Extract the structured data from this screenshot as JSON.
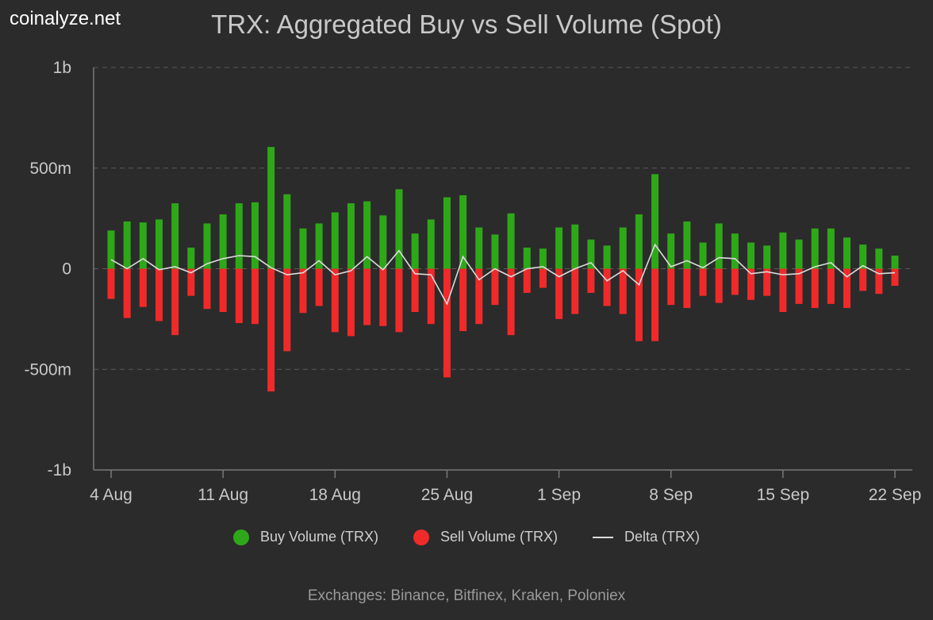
{
  "brand": "coinalyze.net",
  "title": "TRX: Aggregated Buy vs Sell Volume (Spot)",
  "footer": "Exchanges: Binance, Bitfinex, Kraken, Poloniex",
  "legend": {
    "buy": "Buy Volume (TRX)",
    "sell": "Sell Volume (TRX)",
    "delta": "Delta (TRX)"
  },
  "colors": {
    "buy": "#2ea818",
    "sell": "#f02a2a",
    "delta": "#dcdcdc",
    "grid": "#5a5a5a",
    "background": "#2b2b2b"
  },
  "chart_data": {
    "type": "bar",
    "title": "TRX: Aggregated Buy vs Sell Volume (Spot)",
    "ylim": [
      -1000000000,
      1000000000
    ],
    "y_ticks": [
      {
        "value": 1000000000,
        "label": "1b"
      },
      {
        "value": 500000000,
        "label": "500m"
      },
      {
        "value": 0,
        "label": "0"
      },
      {
        "value": -500000000,
        "label": "-500m"
      },
      {
        "value": -1000000000,
        "label": "-1b"
      }
    ],
    "x_ticks": [
      {
        "index": 0,
        "label": "4 Aug"
      },
      {
        "index": 7,
        "label": "11 Aug"
      },
      {
        "index": 14,
        "label": "18 Aug"
      },
      {
        "index": 21,
        "label": "25 Aug"
      },
      {
        "index": 28,
        "label": "1 Sep"
      },
      {
        "index": 35,
        "label": "8 Sep"
      },
      {
        "index": 42,
        "label": "15 Sep"
      },
      {
        "index": 49,
        "label": "22 Sep"
      }
    ],
    "grid": true,
    "legend_position": "bottom",
    "categories": [
      "4 Aug",
      "5 Aug",
      "6 Aug",
      "7 Aug",
      "8 Aug",
      "9 Aug",
      "10 Aug",
      "11 Aug",
      "12 Aug",
      "13 Aug",
      "14 Aug",
      "15 Aug",
      "16 Aug",
      "17 Aug",
      "18 Aug",
      "19 Aug",
      "20 Aug",
      "21 Aug",
      "22 Aug",
      "23 Aug",
      "24 Aug",
      "25 Aug",
      "26 Aug",
      "27 Aug",
      "28 Aug",
      "29 Aug",
      "30 Aug",
      "31 Aug",
      "1 Sep",
      "2 Sep",
      "3 Sep",
      "4 Sep",
      "5 Sep",
      "6 Sep",
      "7 Sep",
      "8 Sep",
      "9 Sep",
      "10 Sep",
      "11 Sep",
      "12 Sep",
      "13 Sep",
      "14 Sep",
      "15 Sep",
      "16 Sep",
      "17 Sep",
      "18 Sep",
      "19 Sep",
      "20 Sep",
      "21 Sep",
      "22 Sep"
    ],
    "series": [
      {
        "name": "Buy Volume (TRX)",
        "values": [
          190000000,
          235000000,
          230000000,
          245000000,
          325000000,
          105000000,
          225000000,
          270000000,
          325000000,
          330000000,
          605000000,
          370000000,
          200000000,
          225000000,
          280000000,
          325000000,
          335000000,
          265000000,
          395000000,
          175000000,
          245000000,
          355000000,
          365000000,
          205000000,
          170000000,
          275000000,
          105000000,
          100000000,
          205000000,
          220000000,
          145000000,
          115000000,
          205000000,
          270000000,
          470000000,
          175000000,
          235000000,
          130000000,
          225000000,
          175000000,
          130000000,
          115000000,
          180000000,
          145000000,
          200000000,
          200000000,
          155000000,
          120000000,
          100000000,
          65000000
        ]
      },
      {
        "name": "Sell Volume (TRX)",
        "values": [
          -150000000,
          -245000000,
          -190000000,
          -260000000,
          -330000000,
          -135000000,
          -200000000,
          -215000000,
          -270000000,
          -275000000,
          -610000000,
          -410000000,
          -220000000,
          -185000000,
          -315000000,
          -335000000,
          -280000000,
          -285000000,
          -315000000,
          -215000000,
          -275000000,
          -540000000,
          -310000000,
          -275000000,
          -180000000,
          -330000000,
          -120000000,
          -95000000,
          -250000000,
          -225000000,
          -120000000,
          -185000000,
          -225000000,
          -360000000,
          -360000000,
          -180000000,
          -195000000,
          -135000000,
          -170000000,
          -130000000,
          -155000000,
          -135000000,
          -215000000,
          -175000000,
          -195000000,
          -175000000,
          -195000000,
          -110000000,
          -125000000,
          -85000000
        ]
      },
      {
        "name": "Delta (TRX)",
        "values": [
          45000000,
          0,
          50000000,
          -5000000,
          10000000,
          -20000000,
          25000000,
          50000000,
          65000000,
          60000000,
          5000000,
          -30000000,
          -20000000,
          40000000,
          -30000000,
          -10000000,
          60000000,
          -5000000,
          90000000,
          -25000000,
          -30000000,
          -175000000,
          60000000,
          -55000000,
          0,
          -40000000,
          0,
          10000000,
          -40000000,
          0,
          30000000,
          -60000000,
          -10000000,
          -80000000,
          120000000,
          10000000,
          40000000,
          5000000,
          55000000,
          50000000,
          -25000000,
          -15000000,
          -30000000,
          -25000000,
          10000000,
          30000000,
          -40000000,
          15000000,
          -25000000,
          -20000000
        ]
      }
    ]
  }
}
